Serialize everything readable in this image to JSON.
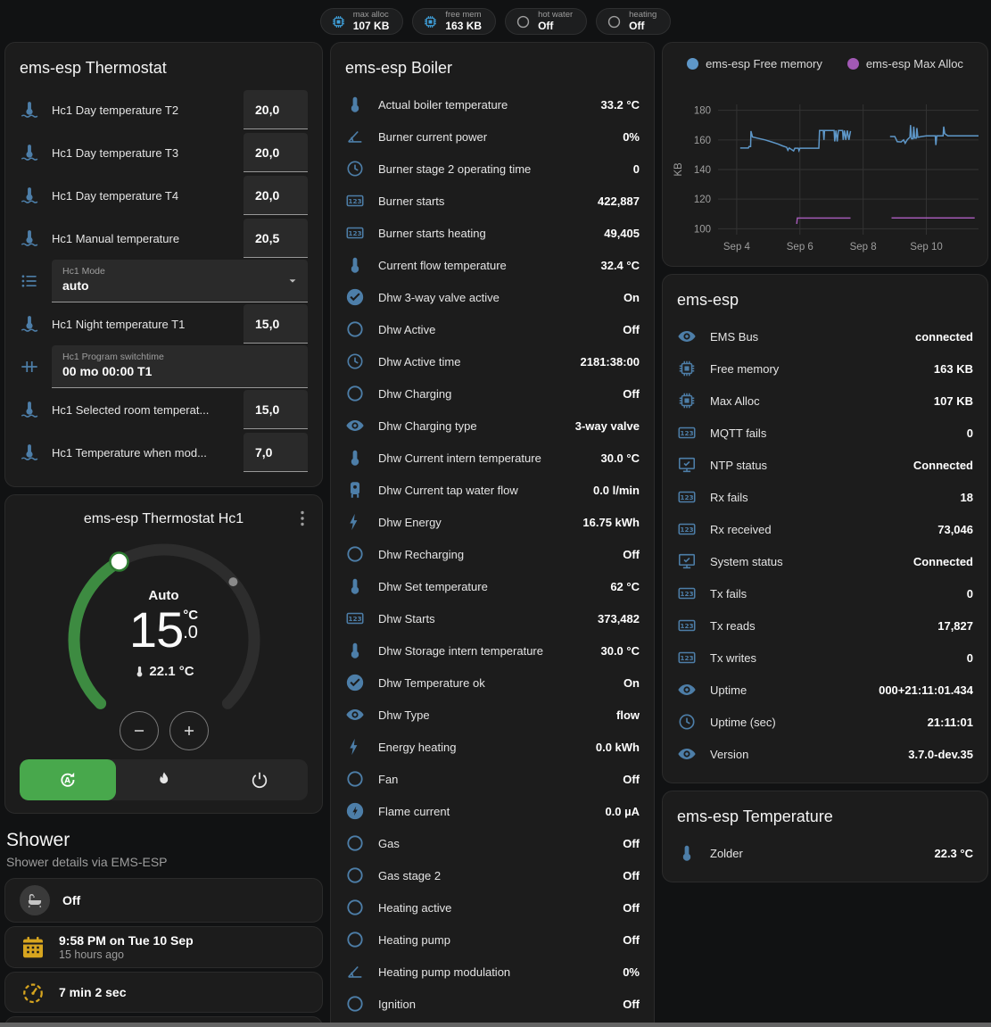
{
  "colors": {
    "icon_blue": "#4d7ea8",
    "badge_blue": "#3f9fd9",
    "green_active": "#48a84c",
    "dial_green": "#3d8b41",
    "yellow": "#d7a51f",
    "chart_blue": "#5e97c8",
    "chart_purple": "#a259b5"
  },
  "topbar": {
    "badges": [
      {
        "icon": "chip",
        "icon_color": "blue",
        "label": "max alloc",
        "value": "107 KB"
      },
      {
        "icon": "chip",
        "icon_color": "blue",
        "label": "free mem",
        "value": "163 KB"
      },
      {
        "icon": "circle",
        "icon_color": "gray",
        "label": "hot water",
        "value": "Off"
      },
      {
        "icon": "circle",
        "icon_color": "gray",
        "label": "heating",
        "value": "Off"
      }
    ]
  },
  "thermostat_card": {
    "title": "ems-esp Thermostat",
    "rows": [
      {
        "icon": "thermometer-water",
        "label": "Hc1 Day temperature T2",
        "value": "20,0",
        "control": "number"
      },
      {
        "icon": "thermometer-water",
        "label": "Hc1 Day temperature T3",
        "value": "20,0",
        "control": "number"
      },
      {
        "icon": "thermometer-water",
        "label": "Hc1 Day temperature T4",
        "value": "20,0",
        "control": "number"
      },
      {
        "icon": "thermometer-water",
        "label": "Hc1 Manual temperature",
        "value": "20,5",
        "control": "number"
      },
      {
        "icon": "format-list",
        "label": "Hc1 Mode",
        "value": "auto",
        "control": "select"
      },
      {
        "icon": "thermometer-water",
        "label": "Hc1 Night temperature T1",
        "value": "15,0",
        "control": "number"
      },
      {
        "icon": "pipe",
        "label": "Hc1 Program switchtime",
        "value": "00 mo 00:00 T1",
        "control": "text"
      },
      {
        "icon": "thermometer-water",
        "label": "Hc1 Selected room temperat...",
        "value": "15,0",
        "control": "number"
      },
      {
        "icon": "thermometer-water",
        "label": "Hc1 Temperature when mod...",
        "value": "7,0",
        "control": "number"
      }
    ]
  },
  "hc1_card": {
    "title": "ems-esp Thermostat Hc1",
    "mode": "Auto",
    "target_int": "15",
    "target_unit": "°C",
    "target_dec": ".0",
    "current": "22.1 °C"
  },
  "shower": {
    "title": "Shower",
    "subtitle": "Shower details via EMS-ESP",
    "items": [
      {
        "icon": "bathtub",
        "text": "Off"
      },
      {
        "icon": "calendar",
        "text": "9:58 PM on Tue 10 Sep",
        "sub": "15 hours ago"
      },
      {
        "icon": "timer",
        "text": "7 min 2 sec"
      },
      {
        "icon": "snowflake-alert",
        "text": ""
      }
    ]
  },
  "boiler_card": {
    "title": "ems-esp Boiler",
    "rows": [
      {
        "icon": "thermometer",
        "label": "Actual boiler temperature",
        "value": "33.2 °C"
      },
      {
        "icon": "angle",
        "label": "Burner current power",
        "value": "0%"
      },
      {
        "icon": "clock",
        "label": "Burner stage 2 operating time",
        "value": "0"
      },
      {
        "icon": "counter",
        "label": "Burner starts",
        "value": "422,887"
      },
      {
        "icon": "counter",
        "label": "Burner starts heating",
        "value": "49,405"
      },
      {
        "icon": "thermometer",
        "label": "Current flow temperature",
        "value": "32.4 °C"
      },
      {
        "icon": "check-circle",
        "label": "Dhw 3-way valve active",
        "value": "On"
      },
      {
        "icon": "circle",
        "label": "Dhw Active",
        "value": "Off"
      },
      {
        "icon": "clock",
        "label": "Dhw Active time",
        "value": "2181:38:00"
      },
      {
        "icon": "circle",
        "label": "Dhw Charging",
        "value": "Off"
      },
      {
        "icon": "eye",
        "label": "Dhw Charging type",
        "value": "3-way valve"
      },
      {
        "icon": "thermometer",
        "label": "Dhw Current intern temperature",
        "value": "30.0 °C"
      },
      {
        "icon": "boiler",
        "label": "Dhw Current tap water flow",
        "value": "0.0 l/min"
      },
      {
        "icon": "bolt",
        "label": "Dhw Energy",
        "value": "16.75 kWh"
      },
      {
        "icon": "circle",
        "label": "Dhw Recharging",
        "value": "Off"
      },
      {
        "icon": "thermometer",
        "label": "Dhw Set temperature",
        "value": "62 °C"
      },
      {
        "icon": "counter",
        "label": "Dhw Starts",
        "value": "373,482"
      },
      {
        "icon": "thermometer",
        "label": "Dhw Storage intern temperature",
        "value": "30.0 °C"
      },
      {
        "icon": "check-circle",
        "label": "Dhw Temperature ok",
        "value": "On"
      },
      {
        "icon": "eye",
        "label": "Dhw Type",
        "value": "flow"
      },
      {
        "icon": "bolt",
        "label": "Energy heating",
        "value": "0.0 kWh"
      },
      {
        "icon": "circle",
        "label": "Fan",
        "value": "Off"
      },
      {
        "icon": "bolt-circle",
        "label": "Flame current",
        "value": "0.0 µA"
      },
      {
        "icon": "circle",
        "label": "Gas",
        "value": "Off"
      },
      {
        "icon": "circle",
        "label": "Gas stage 2",
        "value": "Off"
      },
      {
        "icon": "circle",
        "label": "Heating active",
        "value": "Off"
      },
      {
        "icon": "circle",
        "label": "Heating pump",
        "value": "Off"
      },
      {
        "icon": "angle",
        "label": "Heating pump modulation",
        "value": "0%"
      },
      {
        "icon": "circle",
        "label": "Ignition",
        "value": "Off"
      }
    ]
  },
  "emsesp_card": {
    "title": "ems-esp",
    "rows": [
      {
        "icon": "eye",
        "label": "EMS Bus",
        "value": "connected"
      },
      {
        "icon": "chip",
        "label": "Free memory",
        "value": "163 KB"
      },
      {
        "icon": "chip",
        "label": "Max Alloc",
        "value": "107 KB"
      },
      {
        "icon": "counter",
        "label": "MQTT fails",
        "value": "0"
      },
      {
        "icon": "monitor-check",
        "label": "NTP status",
        "value": "Connected"
      },
      {
        "icon": "counter",
        "label": "Rx fails",
        "value": "18"
      },
      {
        "icon": "counter",
        "label": "Rx received",
        "value": "73,046"
      },
      {
        "icon": "monitor-check",
        "label": "System status",
        "value": "Connected"
      },
      {
        "icon": "counter",
        "label": "Tx fails",
        "value": "0"
      },
      {
        "icon": "counter",
        "label": "Tx reads",
        "value": "17,827"
      },
      {
        "icon": "counter",
        "label": "Tx writes",
        "value": "0"
      },
      {
        "icon": "eye",
        "label": "Uptime",
        "value": "000+21:11:01.434"
      },
      {
        "icon": "clock",
        "label": "Uptime (sec)",
        "value": "21:11:01"
      },
      {
        "icon": "eye",
        "label": "Version",
        "value": "3.7.0-dev.35"
      }
    ]
  },
  "temperature_card": {
    "title": "ems-esp Temperature",
    "rows": [
      {
        "icon": "thermometer",
        "label": "Zolder",
        "value": "22.3 °C"
      }
    ]
  },
  "chart_data": {
    "type": "line",
    "ylabel": "KB",
    "xlim": [
      3.41,
      11.65
    ],
    "ylim": [
      96,
      184
    ],
    "grid": true,
    "legend_position": "top",
    "yticks": [
      100,
      120,
      140,
      160,
      180
    ],
    "xticks": [
      {
        "x": 4,
        "label": "Sep 4"
      },
      {
        "x": 6,
        "label": "Sep 6"
      },
      {
        "x": 8,
        "label": "Sep 8"
      },
      {
        "x": 10,
        "label": "Sep 10"
      }
    ],
    "series": [
      {
        "name": "ems-esp Free memory",
        "color": "#5e97c8",
        "segments": [
          [
            [
              4.11,
              154.5
            ],
            [
              4.37,
              154.5
            ],
            [
              4.39,
              155.5
            ],
            [
              4.44,
              155.5
            ],
            [
              4.45,
              166
            ],
            [
              4.5,
              162
            ],
            [
              4.7,
              161
            ],
            [
              4.9,
              160
            ],
            [
              5.1,
              158.7
            ],
            [
              5.3,
              157.3
            ],
            [
              5.45,
              156
            ],
            [
              5.58,
              155
            ],
            [
              5.62,
              153
            ],
            [
              5.66,
              154.6
            ],
            [
              5.8,
              152.6
            ],
            [
              5.84,
              154.4
            ],
            [
              5.95,
              154.4
            ],
            [
              5.97,
              152.8
            ],
            [
              6.0,
              154.4
            ],
            [
              6.6,
              154.4
            ],
            [
              6.62,
              166.4
            ],
            [
              6.74,
              166.4
            ],
            [
              6.76,
              160
            ],
            [
              6.78,
              166.4
            ],
            [
              7.08,
              166.4
            ],
            [
              7.1,
              159
            ],
            [
              7.14,
              166.4
            ],
            [
              7.18,
              159
            ],
            [
              7.22,
              166.4
            ],
            [
              7.35,
              166.4
            ],
            [
              7.37,
              160
            ],
            [
              7.41,
              166.4
            ],
            [
              7.45,
              160
            ],
            [
              7.5,
              166.4
            ],
            [
              7.55,
              160
            ],
            [
              7.6,
              166
            ]
          ],
          [
            [
              8.85,
              162.3
            ],
            [
              9.0,
              162.3
            ],
            [
              9.03,
              161
            ],
            [
              9.08,
              158.8
            ],
            [
              9.2,
              158.6
            ],
            [
              9.28,
              160
            ],
            [
              9.33,
              157.8
            ],
            [
              9.4,
              160.3
            ],
            [
              9.48,
              161.8
            ],
            [
              9.5,
              170
            ],
            [
              9.53,
              160.8
            ],
            [
              9.58,
              160.8
            ],
            [
              9.6,
              169
            ],
            [
              9.63,
              161.3
            ],
            [
              9.68,
              161.3
            ],
            [
              9.7,
              168
            ],
            [
              9.73,
              161.8
            ],
            [
              9.85,
              162.3
            ],
            [
              10.0,
              162.8
            ],
            [
              10.28,
              162.8
            ],
            [
              10.3,
              156.5
            ],
            [
              10.33,
              162.8
            ],
            [
              10.53,
              162.8
            ],
            [
              10.55,
              169
            ],
            [
              10.58,
              164.3
            ],
            [
              10.68,
              162.8
            ],
            [
              11.65,
              162.8
            ]
          ]
        ]
      },
      {
        "name": "ems-esp Max Alloc",
        "color": "#a259b5",
        "segments": [
          [
            [
              5.9,
              103.3
            ],
            [
              5.92,
              107.2
            ],
            [
              7.6,
              107.2
            ]
          ],
          [
            [
              8.9,
              107.3
            ],
            [
              11.53,
              107.3
            ]
          ]
        ]
      }
    ]
  }
}
